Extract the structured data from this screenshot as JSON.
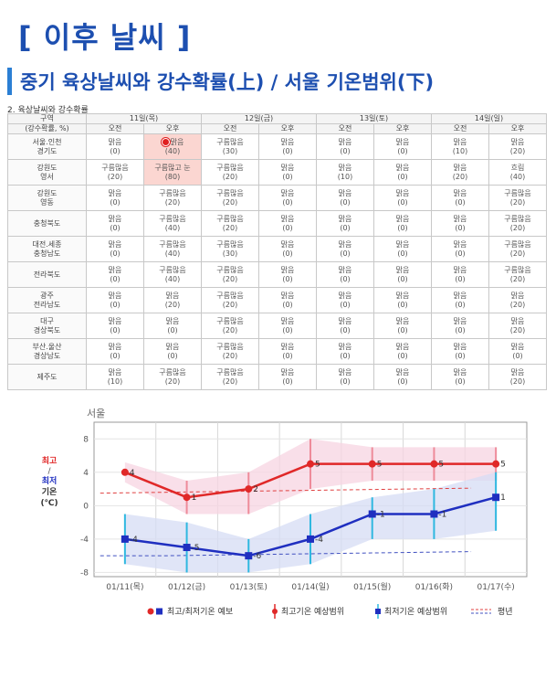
{
  "header": {
    "title": "[ 이후 날씨 ]",
    "subtitle": "중기 육상날씨와 강수확률(上) / 서울 기온범위(下)"
  },
  "table": {
    "caption": "2. 육상날씨와 강수확률",
    "corner_top": "구역",
    "corner_bottom": "(강수확률, %)",
    "days": [
      "11일(목)",
      "12일(금)",
      "13일(토)",
      "14일(일)"
    ],
    "periods": [
      "오전",
      "오후"
    ],
    "highlight_color": "#fbd6d1",
    "rows": [
      {
        "region": [
          "서울.인천",
          "경기도"
        ],
        "cells": [
          [
            "맑음",
            "(0)"
          ],
          [
            "맑음",
            "(40)"
          ],
          [
            "구름많음",
            "(30)"
          ],
          [
            "맑음",
            "(0)"
          ],
          [
            "맑음",
            "(0)"
          ],
          [
            "맑음",
            "(0)"
          ],
          [
            "맑음",
            "(10)"
          ],
          [
            "맑음",
            "(20)"
          ]
        ],
        "highlight": [
          1
        ],
        "marker": 1
      },
      {
        "region": [
          "강원도",
          "영서"
        ],
        "cells": [
          [
            "구름많음",
            "(20)"
          ],
          [
            "구름많고 눈",
            "(80)"
          ],
          [
            "구름많음",
            "(20)"
          ],
          [
            "맑음",
            "(0)"
          ],
          [
            "맑음",
            "(10)"
          ],
          [
            "맑음",
            "(0)"
          ],
          [
            "맑음",
            "(20)"
          ],
          [
            "흐림",
            "(40)"
          ]
        ],
        "highlight": [
          1
        ]
      },
      {
        "region": [
          "강원도",
          "영동"
        ],
        "cells": [
          [
            "맑음",
            "(0)"
          ],
          [
            "구름많음",
            "(20)"
          ],
          [
            "구름많음",
            "(20)"
          ],
          [
            "맑음",
            "(0)"
          ],
          [
            "맑음",
            "(0)"
          ],
          [
            "맑음",
            "(0)"
          ],
          [
            "맑음",
            "(0)"
          ],
          [
            "구름많음",
            "(20)"
          ]
        ]
      },
      {
        "region": [
          "충청북도"
        ],
        "cells": [
          [
            "맑음",
            "(0)"
          ],
          [
            "구름많음",
            "(40)"
          ],
          [
            "구름많음",
            "(20)"
          ],
          [
            "맑음",
            "(0)"
          ],
          [
            "맑음",
            "(0)"
          ],
          [
            "맑음",
            "(0)"
          ],
          [
            "맑음",
            "(0)"
          ],
          [
            "구름많음",
            "(20)"
          ]
        ]
      },
      {
        "region": [
          "대전.세종",
          "충청남도"
        ],
        "cells": [
          [
            "맑음",
            "(0)"
          ],
          [
            "구름많음",
            "(40)"
          ],
          [
            "구름많음",
            "(30)"
          ],
          [
            "맑음",
            "(0)"
          ],
          [
            "맑음",
            "(0)"
          ],
          [
            "맑음",
            "(0)"
          ],
          [
            "맑음",
            "(0)"
          ],
          [
            "구름많음",
            "(20)"
          ]
        ]
      },
      {
        "region": [
          "전라북도"
        ],
        "cells": [
          [
            "맑음",
            "(0)"
          ],
          [
            "구름많음",
            "(40)"
          ],
          [
            "구름많음",
            "(20)"
          ],
          [
            "맑음",
            "(0)"
          ],
          [
            "맑음",
            "(0)"
          ],
          [
            "맑음",
            "(0)"
          ],
          [
            "맑음",
            "(0)"
          ],
          [
            "구름많음",
            "(20)"
          ]
        ]
      },
      {
        "region": [
          "광주",
          "전라남도"
        ],
        "cells": [
          [
            "맑음",
            "(0)"
          ],
          [
            "맑음",
            "(20)"
          ],
          [
            "구름많음",
            "(20)"
          ],
          [
            "맑음",
            "(0)"
          ],
          [
            "맑음",
            "(0)"
          ],
          [
            "맑음",
            "(0)"
          ],
          [
            "맑음",
            "(0)"
          ],
          [
            "맑음",
            "(20)"
          ]
        ]
      },
      {
        "region": [
          "대구",
          "경상북도"
        ],
        "cells": [
          [
            "맑음",
            "(0)"
          ],
          [
            "맑음",
            "(0)"
          ],
          [
            "구름많음",
            "(20)"
          ],
          [
            "맑음",
            "(0)"
          ],
          [
            "맑음",
            "(0)"
          ],
          [
            "맑음",
            "(0)"
          ],
          [
            "맑음",
            "(0)"
          ],
          [
            "맑음",
            "(20)"
          ]
        ]
      },
      {
        "region": [
          "부산.울산",
          "경상남도"
        ],
        "cells": [
          [
            "맑음",
            "(0)"
          ],
          [
            "맑음",
            "(0)"
          ],
          [
            "구름많음",
            "(20)"
          ],
          [
            "맑음",
            "(0)"
          ],
          [
            "맑음",
            "(0)"
          ],
          [
            "맑음",
            "(0)"
          ],
          [
            "맑음",
            "(0)"
          ],
          [
            "맑음",
            "(0)"
          ]
        ]
      },
      {
        "region": [
          "제주도"
        ],
        "cells": [
          [
            "맑음",
            "(10)"
          ],
          [
            "구름많음",
            "(20)"
          ],
          [
            "구름많음",
            "(20)"
          ],
          [
            "맑음",
            "(0)"
          ],
          [
            "맑음",
            "(0)"
          ],
          [
            "맑음",
            "(0)"
          ],
          [
            "맑음",
            "(0)"
          ],
          [
            "맑음",
            "(20)"
          ]
        ]
      }
    ]
  },
  "chart_data": {
    "type": "line",
    "title": "서울",
    "ylabel_high": "최고",
    "ylabel_sep": "/",
    "ylabel_low": "최저",
    "ylabel_line3": "기온",
    "ylabel_unit": "(℃)",
    "categories": [
      "01/11(목)",
      "01/12(금)",
      "01/13(토)",
      "01/14(일)",
      "01/15(월)",
      "01/16(화)",
      "01/17(수)"
    ],
    "ylim": [
      -8.5,
      10
    ],
    "yticks": [
      8,
      4,
      0,
      -4,
      -8
    ],
    "grid": true,
    "series": [
      {
        "name": "최고기온",
        "color": "#e02828",
        "values": [
          4,
          1,
          2,
          5,
          5,
          5,
          5
        ],
        "range_low": [
          null,
          -1,
          -1,
          2,
          3,
          3,
          3
        ],
        "range_high": [
          null,
          3,
          4,
          8,
          7,
          7,
          7
        ],
        "range_color": "#ee8b9a"
      },
      {
        "name": "최저기온",
        "color": "#1f2fc0",
        "values": [
          -4,
          -5,
          -6,
          -4,
          -1,
          -1,
          1
        ],
        "range_low": [
          -7,
          -8,
          -8,
          -7,
          -4,
          -4,
          -3
        ],
        "range_high": [
          -1,
          -2,
          -4,
          -1,
          1,
          2,
          4
        ],
        "range_color": "#2fb8e0"
      }
    ],
    "normal": [
      {
        "name": "평년 최고",
        "color": "#e04040",
        "values": [
          1.5,
          1.6,
          1.7,
          1.8,
          1.9,
          2.0,
          2.1
        ]
      },
      {
        "name": "평년 최저",
        "color": "#4050c0",
        "values": [
          -6.0,
          -6.0,
          -5.9,
          -5.8,
          -5.7,
          -5.6,
          -5.5
        ]
      }
    ],
    "legend": {
      "position": "bottom",
      "items": [
        "최고/최저기온 예보",
        "최고기온 예상범위",
        "최저기온 예상범위",
        "평년"
      ]
    }
  }
}
